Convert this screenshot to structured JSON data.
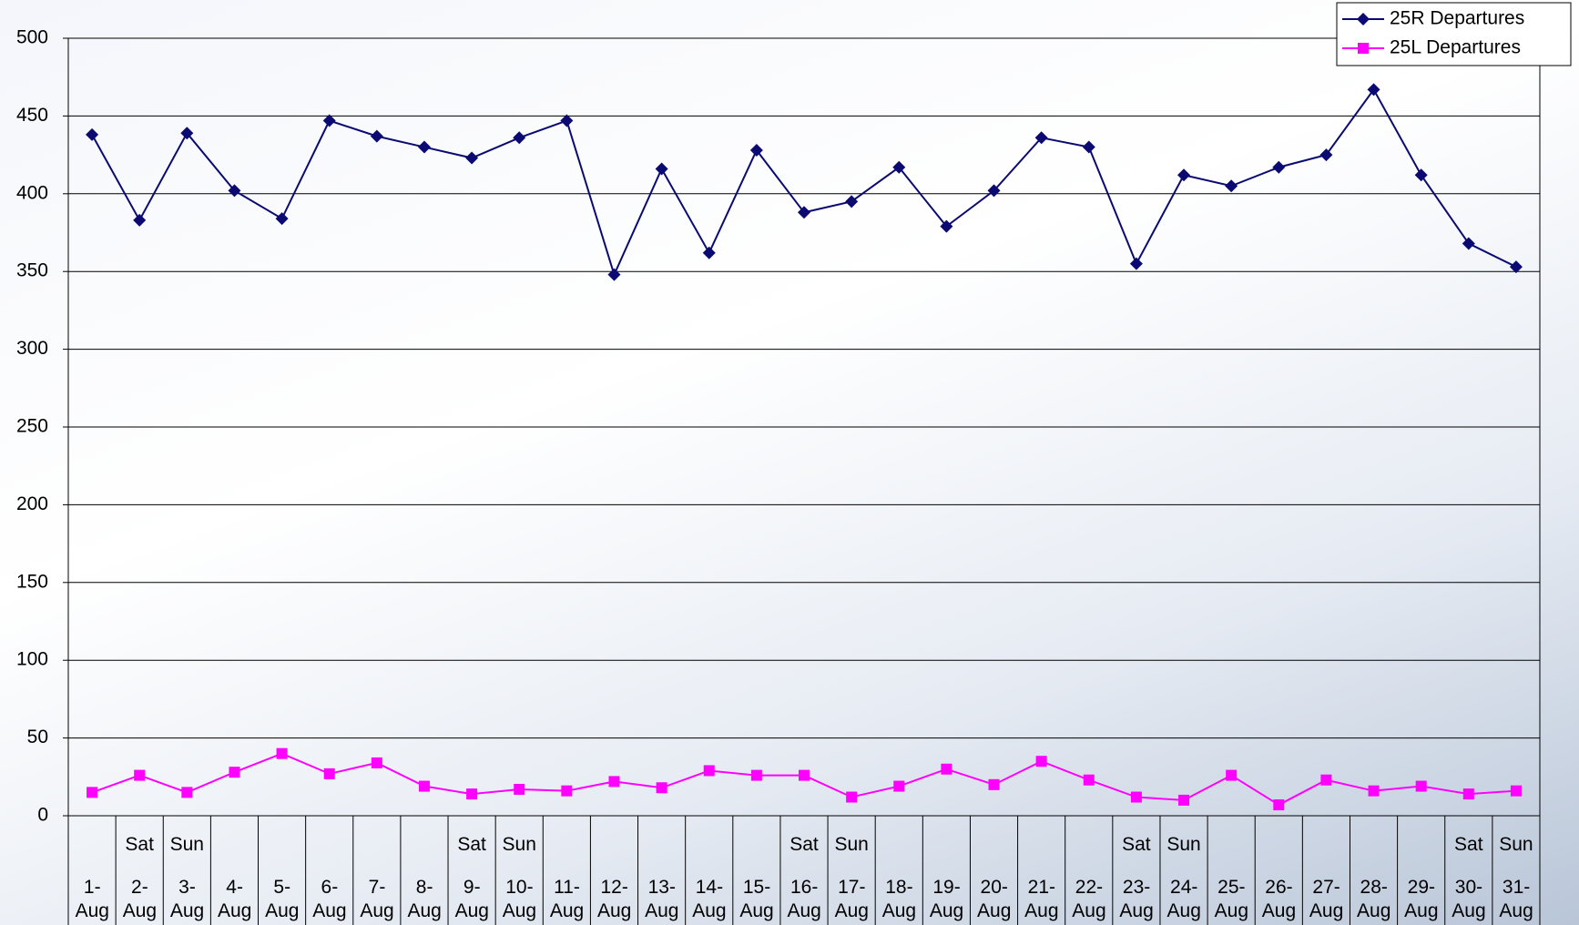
{
  "chart_data": {
    "type": "line",
    "categories": [
      "1-Aug",
      "2-Aug",
      "3-Aug",
      "4-Aug",
      "5-Aug",
      "6-Aug",
      "7-Aug",
      "8-Aug",
      "9-Aug",
      "10-Aug",
      "11-Aug",
      "12-Aug",
      "13-Aug",
      "14-Aug",
      "15-Aug",
      "16-Aug",
      "17-Aug",
      "18-Aug",
      "19-Aug",
      "20-Aug",
      "21-Aug",
      "22-Aug",
      "23-Aug",
      "24-Aug",
      "25-Aug",
      "26-Aug",
      "27-Aug",
      "28-Aug",
      "29-Aug",
      "30-Aug",
      "31-Aug"
    ],
    "weekdays": [
      null,
      "Sat",
      "Sun",
      null,
      null,
      null,
      null,
      null,
      "Sat",
      "Sun",
      null,
      null,
      null,
      null,
      null,
      "Sat",
      "Sun",
      null,
      null,
      null,
      null,
      null,
      "Sat",
      "Sun",
      null,
      null,
      null,
      null,
      null,
      "Sat",
      "Sun"
    ],
    "series": [
      {
        "name": "25R Departures",
        "color": "#0a0a72",
        "marker": "diamond",
        "values": [
          438,
          383,
          439,
          402,
          384,
          447,
          437,
          430,
          423,
          436,
          447,
          348,
          416,
          362,
          428,
          388,
          395,
          417,
          379,
          402,
          436,
          430,
          355,
          412,
          405,
          417,
          425,
          467,
          412,
          368,
          353
        ]
      },
      {
        "name": "25L Departures",
        "color": "#ff00ff",
        "marker": "square",
        "values": [
          15,
          26,
          15,
          28,
          40,
          27,
          34,
          19,
          14,
          17,
          16,
          22,
          18,
          29,
          26,
          26,
          12,
          19,
          30,
          20,
          35,
          23,
          12,
          10,
          26,
          7,
          23,
          16,
          19,
          14,
          16
        ]
      }
    ],
    "ylim": [
      0,
      500
    ],
    "yticks": [
      0,
      50,
      100,
      150,
      200,
      250,
      300,
      350,
      400,
      450,
      500
    ],
    "grid": true,
    "legend": "top-right"
  }
}
